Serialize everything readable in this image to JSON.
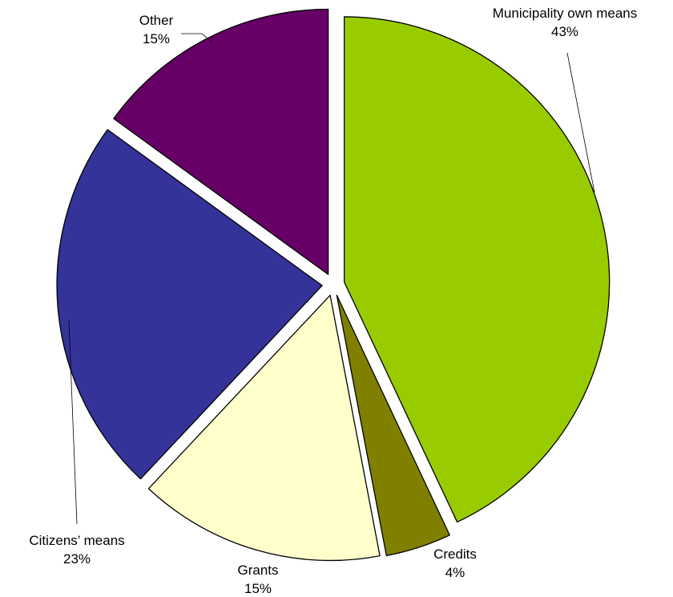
{
  "chart_data": {
    "type": "pie",
    "title": "",
    "exploded": true,
    "start": "12 o'clock",
    "direction": "clockwise",
    "slices": [
      {
        "label": "Municipality own means",
        "value": 43,
        "value_label": "43%",
        "color": "#99CC00"
      },
      {
        "label": "Credits",
        "value": 4,
        "value_label": "4%",
        "color": "#808000"
      },
      {
        "label": "Grants",
        "value": 15,
        "value_label": "15%",
        "color": "#FFFFCC"
      },
      {
        "label": "Citizens’ means",
        "value": 23,
        "value_label": "23%",
        "color": "#333399"
      },
      {
        "label": "Other",
        "value": 15,
        "value_label": "15%",
        "color": "#660066"
      }
    ]
  }
}
